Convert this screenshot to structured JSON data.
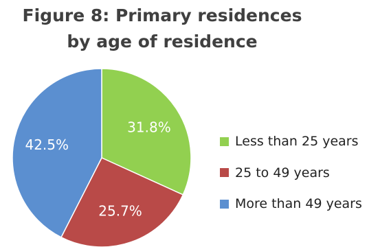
{
  "chart_data": {
    "type": "pie",
    "title_lines": [
      "Figure 8: Primary residences",
      "by age of residence"
    ],
    "categories": [
      "Less than 25 years",
      "25 to 49 years",
      "More than 49 years"
    ],
    "values": [
      31.8,
      25.7,
      42.5
    ],
    "value_labels": [
      "31.8%",
      "25.7%",
      "42.5%"
    ],
    "colors": [
      "#92d050",
      "#b94a48",
      "#5b8fd0"
    ],
    "start_angle_deg": 0,
    "direction": "clockwise",
    "legend_position": "right"
  }
}
